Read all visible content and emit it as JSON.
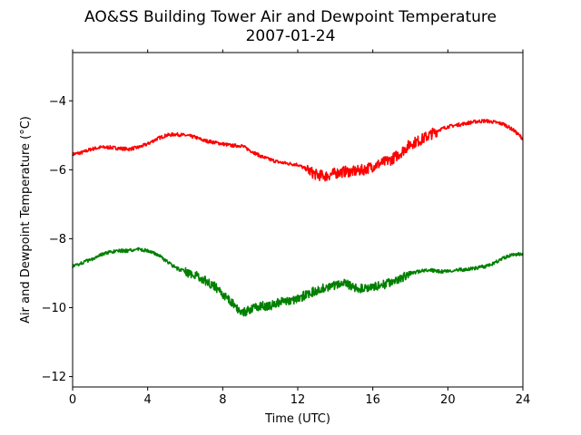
{
  "chart_data": {
    "type": "line",
    "title": "AO&SS Building Tower Air and Dewpoint Temperature",
    "subtitle": "2007-01-24",
    "xlabel": "Time (UTC)",
    "ylabel": "Air and Dewpoint Temperature (°C)",
    "xlim": [
      0,
      24
    ],
    "ylim": [
      -12.3,
      -2.6
    ],
    "x_ticks": [
      0,
      4,
      8,
      12,
      16,
      20,
      24
    ],
    "y_ticks": [
      -12,
      -10,
      -8,
      -6,
      -4
    ],
    "x_tick_labels": [
      "0",
      "4",
      "8",
      "12",
      "16",
      "20",
      "24"
    ],
    "y_tick_labels": [
      "−12",
      "−10",
      "−8",
      "−6",
      "−4"
    ],
    "grid": false,
    "colors": {
      "air": "#ff0000",
      "dewpoint": "#008000"
    },
    "series": [
      {
        "color": "#ff0000",
        "x": [
          0,
          0.5,
          1,
          1.5,
          2,
          2.5,
          3,
          3.5,
          4,
          4.5,
          5,
          5.5,
          6,
          6.5,
          7,
          7.5,
          8,
          8.5,
          9,
          9.5,
          10,
          10.5,
          11,
          11.5,
          12,
          12.5,
          13,
          13.5,
          14,
          14.5,
          15,
          15.5,
          16,
          16.5,
          17,
          17.5,
          18,
          18.5,
          19,
          19.5,
          20,
          20.5,
          21,
          21.5,
          22,
          22.5,
          23,
          23.5,
          24
        ],
        "values": [
          -5.55,
          -5.5,
          -5.4,
          -5.35,
          -5.35,
          -5.38,
          -5.4,
          -5.35,
          -5.25,
          -5.1,
          -5.0,
          -4.97,
          -5.0,
          -5.05,
          -5.15,
          -5.2,
          -5.25,
          -5.3,
          -5.3,
          -5.45,
          -5.6,
          -5.7,
          -5.78,
          -5.82,
          -5.85,
          -6.0,
          -6.15,
          -6.18,
          -6.1,
          -6.05,
          -6.05,
          -6.0,
          -5.9,
          -5.8,
          -5.7,
          -5.5,
          -5.25,
          -5.15,
          -5.0,
          -4.85,
          -4.75,
          -4.7,
          -4.65,
          -4.6,
          -4.58,
          -4.62,
          -4.68,
          -4.85,
          -5.1
        ]
      },
      {
        "color": "#008000",
        "x": [
          0,
          0.5,
          1,
          1.5,
          2,
          2.5,
          3,
          3.5,
          4,
          4.5,
          5,
          5.5,
          6,
          6.5,
          7,
          7.5,
          8,
          8.5,
          9,
          9.5,
          10,
          10.5,
          11,
          11.5,
          12,
          12.5,
          13,
          13.5,
          14,
          14.5,
          15,
          15.5,
          16,
          16.5,
          17,
          17.5,
          18,
          18.5,
          19,
          19.5,
          20,
          20.5,
          21,
          21.5,
          22,
          22.5,
          23,
          23.5,
          24
        ],
        "values": [
          -8.8,
          -8.7,
          -8.6,
          -8.45,
          -8.4,
          -8.35,
          -8.35,
          -8.3,
          -8.35,
          -8.45,
          -8.65,
          -8.85,
          -8.95,
          -9.05,
          -9.2,
          -9.35,
          -9.6,
          -9.85,
          -10.15,
          -10.05,
          -9.95,
          -9.95,
          -9.85,
          -9.8,
          -9.75,
          -9.6,
          -9.5,
          -9.4,
          -9.35,
          -9.3,
          -9.4,
          -9.45,
          -9.4,
          -9.35,
          -9.25,
          -9.15,
          -9.0,
          -8.95,
          -8.9,
          -8.95,
          -8.95,
          -8.9,
          -8.9,
          -8.85,
          -8.8,
          -8.7,
          -8.55,
          -8.45,
          -8.45
        ]
      }
    ]
  }
}
